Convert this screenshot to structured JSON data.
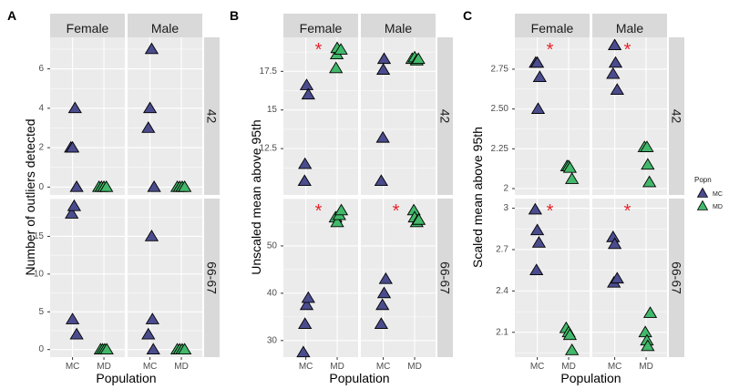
{
  "chart_data": [
    {
      "panel_label": "A",
      "type": "scatter",
      "ylabel": "Number of outliers detected",
      "xlabel": "Population",
      "categories": [
        "MC",
        "MD"
      ],
      "col_facets": [
        "Female",
        "Male"
      ],
      "row_facets": [
        "42",
        "66-67"
      ],
      "row_ylim": [
        [
          -0.4,
          7.6
        ],
        [
          -1,
          20
        ]
      ],
      "row_yticks": [
        [
          0,
          2,
          4,
          6
        ],
        [
          0,
          5,
          10,
          15
        ]
      ],
      "points": [
        {
          "row": 0,
          "col": 0,
          "pop": "MC",
          "x": -0.04,
          "y": 2
        },
        {
          "row": 0,
          "col": 0,
          "pop": "MC",
          "x": 0.0,
          "y": 2
        },
        {
          "row": 0,
          "col": 0,
          "pop": "MC",
          "x": 0.06,
          "y": 4
        },
        {
          "row": 0,
          "col": 0,
          "pop": "MC",
          "x": 0.1,
          "y": 0
        },
        {
          "row": 0,
          "col": 0,
          "pop": "MD",
          "x": -0.12,
          "y": 0
        },
        {
          "row": 0,
          "col": 0,
          "pop": "MD",
          "x": -0.06,
          "y": 0
        },
        {
          "row": 0,
          "col": 0,
          "pop": "MD",
          "x": 0.0,
          "y": 0
        },
        {
          "row": 0,
          "col": 0,
          "pop": "MD",
          "x": 0.06,
          "y": 0
        },
        {
          "row": 0,
          "col": 1,
          "pop": "MC",
          "x": -0.04,
          "y": 3
        },
        {
          "row": 0,
          "col": 1,
          "pop": "MC",
          "x": 0.0,
          "y": 4
        },
        {
          "row": 0,
          "col": 1,
          "pop": "MC",
          "x": 0.04,
          "y": 7
        },
        {
          "row": 0,
          "col": 1,
          "pop": "MC",
          "x": 0.1,
          "y": 0
        },
        {
          "row": 0,
          "col": 1,
          "pop": "MD",
          "x": -0.1,
          "y": 0
        },
        {
          "row": 0,
          "col": 1,
          "pop": "MD",
          "x": -0.04,
          "y": 0
        },
        {
          "row": 0,
          "col": 1,
          "pop": "MD",
          "x": 0.02,
          "y": 0
        },
        {
          "row": 0,
          "col": 1,
          "pop": "MD",
          "x": 0.08,
          "y": 0
        },
        {
          "row": 1,
          "col": 0,
          "pop": "MC",
          "x": -0.02,
          "y": 18
        },
        {
          "row": 1,
          "col": 0,
          "pop": "MC",
          "x": 0.04,
          "y": 19
        },
        {
          "row": 1,
          "col": 0,
          "pop": "MC",
          "x": 0.0,
          "y": 4
        },
        {
          "row": 1,
          "col": 0,
          "pop": "MC",
          "x": 0.1,
          "y": 2
        },
        {
          "row": 1,
          "col": 0,
          "pop": "MD",
          "x": -0.08,
          "y": 0
        },
        {
          "row": 1,
          "col": 0,
          "pop": "MD",
          "x": -0.03,
          "y": 0
        },
        {
          "row": 1,
          "col": 0,
          "pop": "MD",
          "x": 0.02,
          "y": 0
        },
        {
          "row": 1,
          "col": 0,
          "pop": "MD",
          "x": 0.07,
          "y": 0
        },
        {
          "row": 1,
          "col": 1,
          "pop": "MC",
          "x": 0.04,
          "y": 15
        },
        {
          "row": 1,
          "col": 1,
          "pop": "MC",
          "x": 0.06,
          "y": 4
        },
        {
          "row": 1,
          "col": 1,
          "pop": "MC",
          "x": -0.04,
          "y": 2
        },
        {
          "row": 1,
          "col": 1,
          "pop": "MC",
          "x": 0.08,
          "y": 0
        },
        {
          "row": 1,
          "col": 1,
          "pop": "MD",
          "x": -0.1,
          "y": 0
        },
        {
          "row": 1,
          "col": 1,
          "pop": "MD",
          "x": -0.04,
          "y": 0
        },
        {
          "row": 1,
          "col": 1,
          "pop": "MD",
          "x": 0.02,
          "y": 0
        },
        {
          "row": 1,
          "col": 1,
          "pop": "MD",
          "x": 0.08,
          "y": 0
        }
      ],
      "significance_stars": []
    },
    {
      "panel_label": "B",
      "type": "scatter",
      "ylabel": "Unscaled mean above 95th",
      "xlabel": "Population",
      "categories": [
        "MC",
        "MD"
      ],
      "col_facets": [
        "Female",
        "Male"
      ],
      "row_facets": [
        "42",
        "66-67"
      ],
      "row_ylim": [
        [
          9.5,
          19.7
        ],
        [
          26.5,
          60
        ]
      ],
      "row_yticks": [
        [
          12.5,
          15.0,
          17.5
        ],
        [
          30,
          40,
          50
        ]
      ],
      "points": [
        {
          "row": 0,
          "col": 0,
          "pop": "MC",
          "x": -0.03,
          "y": 10.4
        },
        {
          "row": 0,
          "col": 0,
          "pop": "MC",
          "x": -0.02,
          "y": 11.5
        },
        {
          "row": 0,
          "col": 0,
          "pop": "MC",
          "x": 0.02,
          "y": 16.6
        },
        {
          "row": 0,
          "col": 0,
          "pop": "MC",
          "x": 0.06,
          "y": 16.0
        },
        {
          "row": 0,
          "col": 0,
          "pop": "MD",
          "x": -0.03,
          "y": 17.7
        },
        {
          "row": 0,
          "col": 0,
          "pop": "MD",
          "x": -0.01,
          "y": 18.6
        },
        {
          "row": 0,
          "col": 0,
          "pop": "MD",
          "x": 0.0,
          "y": 19.0
        },
        {
          "row": 0,
          "col": 0,
          "pop": "MD",
          "x": 0.09,
          "y": 18.9
        },
        {
          "row": 0,
          "col": 1,
          "pop": "MC",
          "x": -0.05,
          "y": 10.4
        },
        {
          "row": 0,
          "col": 1,
          "pop": "MC",
          "x": -0.01,
          "y": 13.2
        },
        {
          "row": 0,
          "col": 1,
          "pop": "MC",
          "x": 0.0,
          "y": 17.6
        },
        {
          "row": 0,
          "col": 1,
          "pop": "MC",
          "x": 0.02,
          "y": 18.3
        },
        {
          "row": 0,
          "col": 1,
          "pop": "MD",
          "x": -0.06,
          "y": 18.3
        },
        {
          "row": 0,
          "col": 1,
          "pop": "MD",
          "x": 0.0,
          "y": 18.4
        },
        {
          "row": 0,
          "col": 1,
          "pop": "MD",
          "x": 0.05,
          "y": 18.2
        },
        {
          "row": 0,
          "col": 1,
          "pop": "MD",
          "x": 0.09,
          "y": 18.3
        },
        {
          "row": 1,
          "col": 0,
          "pop": "MC",
          "x": -0.06,
          "y": 27.5
        },
        {
          "row": 1,
          "col": 0,
          "pop": "MC",
          "x": -0.02,
          "y": 33.5
        },
        {
          "row": 1,
          "col": 0,
          "pop": "MC",
          "x": 0.02,
          "y": 37.5
        },
        {
          "row": 1,
          "col": 0,
          "pop": "MC",
          "x": 0.06,
          "y": 39.0
        },
        {
          "row": 1,
          "col": 0,
          "pop": "MD",
          "x": -0.04,
          "y": 56.0
        },
        {
          "row": 1,
          "col": 0,
          "pop": "MD",
          "x": 0.0,
          "y": 55.0
        },
        {
          "row": 1,
          "col": 0,
          "pop": "MD",
          "x": 0.05,
          "y": 56.5
        },
        {
          "row": 1,
          "col": 0,
          "pop": "MD",
          "x": 0.1,
          "y": 57.5
        },
        {
          "row": 1,
          "col": 1,
          "pop": "MC",
          "x": -0.05,
          "y": 33.5
        },
        {
          "row": 1,
          "col": 1,
          "pop": "MC",
          "x": -0.02,
          "y": 37.5
        },
        {
          "row": 1,
          "col": 1,
          "pop": "MC",
          "x": 0.02,
          "y": 40.0
        },
        {
          "row": 1,
          "col": 1,
          "pop": "MC",
          "x": 0.06,
          "y": 43.0
        },
        {
          "row": 1,
          "col": 1,
          "pop": "MD",
          "x": -0.02,
          "y": 57.5
        },
        {
          "row": 1,
          "col": 1,
          "pop": "MD",
          "x": 0.0,
          "y": 56.0
        },
        {
          "row": 1,
          "col": 1,
          "pop": "MD",
          "x": 0.05,
          "y": 55.0
        },
        {
          "row": 1,
          "col": 1,
          "pop": "MD",
          "x": 0.1,
          "y": 55.5
        }
      ],
      "significance_stars": [
        {
          "row": 0,
          "col": 0,
          "text": "*"
        },
        {
          "row": 1,
          "col": 0,
          "text": "*"
        },
        {
          "row": 1,
          "col": 1,
          "text": "*"
        }
      ]
    },
    {
      "panel_label": "C",
      "type": "scatter",
      "ylabel": "Scaled mean above 95th",
      "xlabel": "Population",
      "categories": [
        "MC",
        "MD"
      ],
      "col_facets": [
        "Female",
        "Male"
      ],
      "row_facets": [
        "42",
        "66-67"
      ],
      "row_ylim": [
        [
          1.96,
          2.95
        ],
        [
          1.92,
          3.07
        ]
      ],
      "row_yticks": [
        [
          2.0,
          2.25,
          2.5,
          2.75
        ],
        [
          2.1,
          2.4,
          2.7,
          3.0
        ]
      ],
      "points": [
        {
          "row": 0,
          "col": 0,
          "pop": "MC",
          "x": -0.04,
          "y": 2.79
        },
        {
          "row": 0,
          "col": 0,
          "pop": "MC",
          "x": 0.0,
          "y": 2.79
        },
        {
          "row": 0,
          "col": 0,
          "pop": "MC",
          "x": 0.06,
          "y": 2.7
        },
        {
          "row": 0,
          "col": 0,
          "pop": "MC",
          "x": 0.02,
          "y": 2.5
        },
        {
          "row": 0,
          "col": 0,
          "pop": "MD",
          "x": -0.04,
          "y": 2.14
        },
        {
          "row": 0,
          "col": 0,
          "pop": "MD",
          "x": 0.0,
          "y": 2.14
        },
        {
          "row": 0,
          "col": 0,
          "pop": "MD",
          "x": 0.03,
          "y": 2.13
        },
        {
          "row": 0,
          "col": 0,
          "pop": "MD",
          "x": 0.08,
          "y": 2.06
        },
        {
          "row": 0,
          "col": 1,
          "pop": "MC",
          "x": -0.04,
          "y": 2.72
        },
        {
          "row": 0,
          "col": 1,
          "pop": "MC",
          "x": 0.0,
          "y": 2.9
        },
        {
          "row": 0,
          "col": 1,
          "pop": "MC",
          "x": 0.02,
          "y": 2.79
        },
        {
          "row": 0,
          "col": 1,
          "pop": "MC",
          "x": 0.06,
          "y": 2.62
        },
        {
          "row": 0,
          "col": 1,
          "pop": "MD",
          "x": -0.04,
          "y": 2.26
        },
        {
          "row": 0,
          "col": 1,
          "pop": "MD",
          "x": 0.02,
          "y": 2.26
        },
        {
          "row": 0,
          "col": 1,
          "pop": "MD",
          "x": 0.04,
          "y": 2.15
        },
        {
          "row": 0,
          "col": 1,
          "pop": "MD",
          "x": 0.08,
          "y": 2.04
        },
        {
          "row": 1,
          "col": 0,
          "pop": "MC",
          "x": -0.05,
          "y": 2.99
        },
        {
          "row": 1,
          "col": 0,
          "pop": "MC",
          "x": 0.0,
          "y": 2.84
        },
        {
          "row": 1,
          "col": 0,
          "pop": "MC",
          "x": 0.04,
          "y": 2.75
        },
        {
          "row": 1,
          "col": 0,
          "pop": "MC",
          "x": -0.02,
          "y": 2.55
        },
        {
          "row": 1,
          "col": 0,
          "pop": "MD",
          "x": -0.06,
          "y": 2.13
        },
        {
          "row": 1,
          "col": 0,
          "pop": "MD",
          "x": 0.0,
          "y": 2.1
        },
        {
          "row": 1,
          "col": 0,
          "pop": "MD",
          "x": 0.03,
          "y": 2.08
        },
        {
          "row": 1,
          "col": 0,
          "pop": "MD",
          "x": 0.08,
          "y": 1.97
        },
        {
          "row": 1,
          "col": 1,
          "pop": "MC",
          "x": -0.04,
          "y": 2.79
        },
        {
          "row": 1,
          "col": 1,
          "pop": "MC",
          "x": 0.0,
          "y": 2.74
        },
        {
          "row": 1,
          "col": 1,
          "pop": "MC",
          "x": -0.02,
          "y": 2.46
        },
        {
          "row": 1,
          "col": 1,
          "pop": "MC",
          "x": 0.06,
          "y": 2.49
        },
        {
          "row": 1,
          "col": 1,
          "pop": "MD",
          "x": -0.02,
          "y": 2.1
        },
        {
          "row": 1,
          "col": 1,
          "pop": "MD",
          "x": 0.02,
          "y": 2.04
        },
        {
          "row": 1,
          "col": 1,
          "pop": "MD",
          "x": 0.04,
          "y": 2.0
        },
        {
          "row": 1,
          "col": 1,
          "pop": "MD",
          "x": 0.1,
          "y": 2.24
        }
      ],
      "significance_stars": [
        {
          "row": 0,
          "col": 0,
          "text": "*"
        },
        {
          "row": 0,
          "col": 1,
          "text": "*"
        },
        {
          "row": 1,
          "col": 0,
          "text": "*"
        },
        {
          "row": 1,
          "col": 1,
          "text": "*"
        }
      ]
    }
  ],
  "legend": {
    "title": "Popn",
    "entries": [
      {
        "label": "MC",
        "color": "#4b4c8e"
      },
      {
        "label": "MD",
        "color": "#42b86a"
      }
    ]
  },
  "colors": {
    "MC": "#4b4c8e",
    "MD": "#42b86a",
    "star": "#e8242b",
    "panel_bg": "#ebebeb",
    "strip_bg": "#d9d9d9",
    "grid": "#ffffff"
  }
}
